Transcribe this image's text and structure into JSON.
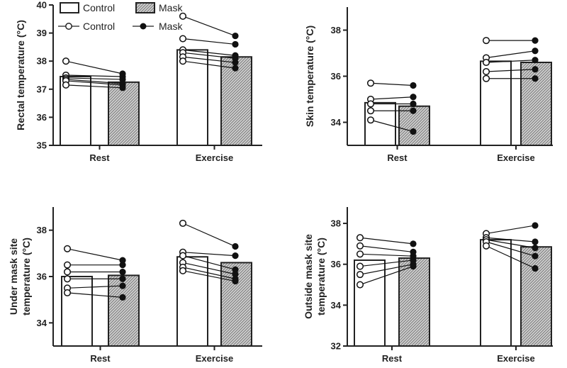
{
  "legend": {
    "bar_control": "Control",
    "bar_mask": "Mask",
    "dot_control": "Control",
    "dot_mask": "Mask"
  },
  "colors": {
    "axis": "#222222",
    "bar_edge": "#222222",
    "mask_fill": "#c8c8c8",
    "text": "#222222"
  },
  "chart_data": [
    {
      "type": "bar",
      "title": "",
      "ylabel": [
        "Rectal temperature (°C)"
      ],
      "ylim": [
        35,
        40
      ],
      "yticks": [
        "35",
        "36",
        "37",
        "38",
        "39",
        "40"
      ],
      "categories": [
        "Rest",
        "Exercise"
      ],
      "series": [
        {
          "name": "Control",
          "values": [
            37.45,
            38.4
          ]
        },
        {
          "name": "Mask",
          "values": [
            37.25,
            38.15
          ]
        }
      ],
      "individual": {
        "Control": [
          [
            38.0,
            37.5,
            37.4,
            37.35,
            37.3,
            37.15
          ],
          [
            39.6,
            38.8,
            38.4,
            38.3,
            38.15,
            38.0
          ]
        ],
        "Mask": [
          [
            37.55,
            37.45,
            37.35,
            37.2,
            37.15,
            37.05
          ],
          [
            38.9,
            38.6,
            38.2,
            38.1,
            37.95,
            37.75
          ]
        ]
      }
    },
    {
      "type": "bar",
      "title": "",
      "ylabel": [
        "Skin temperature (°C)"
      ],
      "ylim": [
        33,
        39
      ],
      "yticks": [
        "34",
        "36",
        "38"
      ],
      "categories": [
        "Rest",
        "Exercise"
      ],
      "series": [
        {
          "name": "Control",
          "values": [
            34.85,
            36.65
          ]
        },
        {
          "name": "Mask",
          "values": [
            34.7,
            36.6
          ]
        }
      ],
      "individual": {
        "Control": [
          [
            35.7,
            35.0,
            34.8,
            34.5,
            34.1
          ],
          [
            37.55,
            36.8,
            36.6,
            36.2,
            35.9
          ]
        ],
        "Mask": [
          [
            35.6,
            35.1,
            34.8,
            34.5,
            33.6
          ],
          [
            37.55,
            37.1,
            36.7,
            36.3,
            35.9
          ]
        ]
      }
    },
    {
      "type": "bar",
      "title": "",
      "ylabel": [
        "Under mask site",
        "temperature (°C)"
      ],
      "ylim": [
        33,
        39
      ],
      "yticks": [
        "34",
        "36",
        "38"
      ],
      "categories": [
        "Rest",
        "Exercise"
      ],
      "series": [
        {
          "name": "Control",
          "values": [
            36.0,
            36.85
          ]
        },
        {
          "name": "Mask",
          "values": [
            36.05,
            36.6
          ]
        }
      ],
      "individual": {
        "Control": [
          [
            37.2,
            36.5,
            36.2,
            35.9,
            35.5,
            35.3
          ],
          [
            38.3,
            37.05,
            36.9,
            36.6,
            36.4,
            36.25
          ]
        ],
        "Mask": [
          [
            36.7,
            36.5,
            36.2,
            35.9,
            35.6,
            35.1
          ],
          [
            37.3,
            36.9,
            36.3,
            36.1,
            35.9,
            35.8
          ]
        ]
      }
    },
    {
      "type": "bar",
      "title": "",
      "ylabel": [
        "Outside mask site",
        "temperature (°C)"
      ],
      "ylim": [
        32,
        38.8
      ],
      "yticks": [
        "32",
        "34",
        "36",
        "38"
      ],
      "categories": [
        "Rest",
        "Exercise"
      ],
      "series": [
        {
          "name": "Control",
          "values": [
            36.2,
            37.2
          ]
        },
        {
          "name": "Mask",
          "values": [
            36.3,
            36.85
          ]
        }
      ],
      "individual": {
        "Control": [
          [
            37.3,
            36.9,
            36.5,
            35.9,
            35.5,
            35.0
          ],
          [
            37.5,
            37.3,
            37.2,
            37.1,
            36.9
          ]
        ],
        "Mask": [
          [
            37.0,
            36.6,
            36.4,
            36.2,
            36.0,
            35.9
          ],
          [
            37.9,
            37.1,
            36.8,
            36.4,
            35.8
          ]
        ]
      }
    }
  ]
}
